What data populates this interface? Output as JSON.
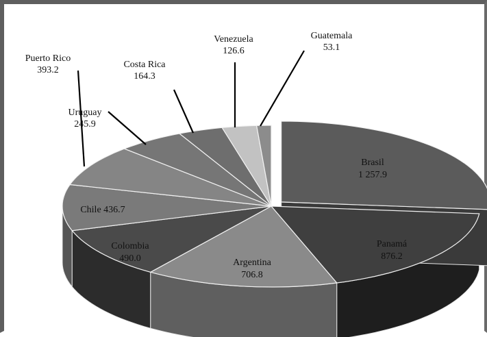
{
  "chart_data": {
    "type": "pie",
    "style": "3d-exploded",
    "title": "",
    "categories": [
      "Brasil",
      "Panamá",
      "Argentina",
      "Colombia",
      "Chile",
      "Puerto Rico",
      "Uruguay",
      "Costa Rica",
      "Venezuela",
      "Guatemala"
    ],
    "values": [
      1257.9,
      876.2,
      706.8,
      490.0,
      436.7,
      393.2,
      245.9,
      164.3,
      126.6,
      53.1
    ],
    "value_labels": [
      "1 257.9",
      "876.2",
      "706.8",
      "490.0",
      "436.7",
      "393.2",
      "245.9",
      "164.3",
      "126.6",
      "53.1"
    ],
    "exploded": [
      "Brasil"
    ],
    "colors": {
      "top": [
        "#5b5b5b",
        "#3f3f3f",
        "#8a8a8a",
        "#4a4a4a",
        "#7a7a7a",
        "#858585",
        "#767676",
        "#6e6e6e",
        "#c2c2c2",
        "#8c8c8c"
      ],
      "side": [
        "#3a3a3a",
        "#1e1e1e",
        "#5f5f5f",
        "#2c2c2c",
        "#555555",
        "#5e5e5e",
        "#505050",
        "#4a4a4a",
        "#909090",
        "#606060"
      ]
    },
    "legend": "none",
    "grid": false
  }
}
